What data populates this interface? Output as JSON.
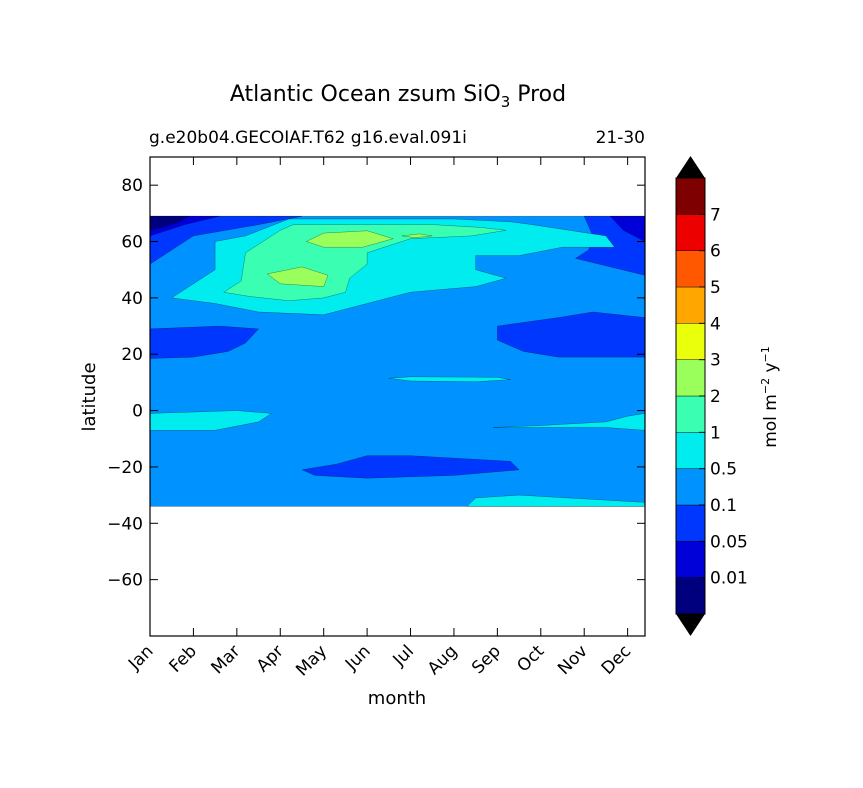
{
  "chart_data": {
    "type": "heatmap",
    "title_main": "Atlantic Ocean zsum SiO",
    "title_sub": "3",
    "title_tail": " Prod",
    "subtitle_left": "g.e20b04.GECOIAF.T62 g16.eval.091i",
    "subtitle_right": "21-30",
    "xlabel": "month",
    "ylabel": "latitude",
    "x_categories": [
      "Jan",
      "Feb",
      "Mar",
      "Apr",
      "May",
      "Jun",
      "Jul",
      "Aug",
      "Sep",
      "Oct",
      "Nov",
      "Dec"
    ],
    "xlim": [
      1,
      12.4
    ],
    "ylim": [
      -80,
      90
    ],
    "y_ticks": [
      80,
      60,
      40,
      20,
      0,
      -20,
      -40,
      -60
    ],
    "y_tick_labels": [
      "80",
      "60",
      "40",
      "20",
      "0",
      "−20",
      "−40",
      "−60"
    ],
    "data_lat_range": [
      -34,
      69
    ],
    "colorbar": {
      "label_main": "mol m",
      "label_exp1": "−2",
      "label_mid": " y",
      "label_exp2": "−1",
      "levels": [
        "0.01",
        "0.05",
        "0.1",
        "0.5",
        "1",
        "2",
        "3",
        "4",
        "5",
        "6",
        "7"
      ],
      "colors": [
        "#00007f",
        "#0000d8",
        "#0037ff",
        "#0093ff",
        "#00ecef",
        "#3affb3",
        "#9bff5b",
        "#eaff0c",
        "#ffa700",
        "#ff5800",
        "#ed0000",
        "#7f0000"
      ],
      "extend": "both",
      "under_color": "#000000",
      "over_color": "#000000"
    },
    "regions": [
      {
        "level_index": 3,
        "desc": "background 0.1-0.5",
        "lat": [
          [
            1,
            -34
          ],
          [
            12.4,
            -34
          ],
          [
            12.4,
            69
          ],
          [
            1,
            69
          ]
        ]
      },
      {
        "level_index": 2,
        "desc": "high lat north 0.05-0.1 west",
        "lat": [
          [
            1,
            69
          ],
          [
            4.5,
            69
          ],
          [
            3.5,
            66
          ],
          [
            2,
            62
          ],
          [
            1,
            52
          ]
        ]
      },
      {
        "level_index": 1,
        "desc": "0.01-0.05 north-west",
        "lat": [
          [
            1,
            69
          ],
          [
            2.6,
            69
          ],
          [
            1.8,
            66
          ],
          [
            1,
            62
          ]
        ]
      },
      {
        "level_index": 0,
        "desc": "<0.01 Jan north",
        "lat": [
          [
            1,
            69
          ],
          [
            1.9,
            69
          ],
          [
            1.6,
            66.5
          ],
          [
            1,
            64
          ]
        ]
      },
      {
        "level_index": 2,
        "desc": "high lat north east 0.05-0.1",
        "lat": [
          [
            12.4,
            69
          ],
          [
            11,
            69
          ],
          [
            11.2,
            62
          ],
          [
            11.1,
            57
          ],
          [
            10.8,
            54
          ],
          [
            12.4,
            48
          ]
        ]
      },
      {
        "level_index": 1,
        "desc": "0.01-0.05 north east",
        "lat": [
          [
            12.4,
            69
          ],
          [
            11.6,
            69
          ],
          [
            11.9,
            64
          ],
          [
            12.4,
            60
          ]
        ]
      },
      {
        "level_index": 4,
        "desc": "0.5-1 northern bloom",
        "lat": [
          [
            2.5,
            60
          ],
          [
            3.2,
            62
          ],
          [
            4.2,
            68
          ],
          [
            6,
            68
          ],
          [
            8,
            68
          ],
          [
            9.3,
            67
          ],
          [
            9.8,
            66
          ],
          [
            11.5,
            62
          ],
          [
            11.7,
            58
          ],
          [
            10.5,
            58
          ],
          [
            9.5,
            55
          ],
          [
            8.5,
            55
          ],
          [
            8.5,
            50
          ],
          [
            9.2,
            47
          ],
          [
            8.5,
            44
          ],
          [
            7,
            42
          ],
          [
            6,
            38
          ],
          [
            5,
            34
          ],
          [
            3.5,
            35
          ],
          [
            2.5,
            38
          ],
          [
            1.5,
            40
          ],
          [
            2.5,
            50
          ]
        ]
      },
      {
        "level_index": 5,
        "desc": "1-2 bloom",
        "lat": [
          [
            3.2,
            56
          ],
          [
            4,
            64
          ],
          [
            4.3,
            66
          ],
          [
            6.4,
            66
          ],
          [
            7.5,
            66
          ],
          [
            8.6,
            65
          ],
          [
            9.2,
            64
          ],
          [
            8.4,
            62
          ],
          [
            7,
            61
          ],
          [
            6.6,
            59
          ],
          [
            6,
            56
          ],
          [
            6,
            52
          ],
          [
            5.6,
            47
          ],
          [
            5.5,
            42
          ],
          [
            5,
            40
          ],
          [
            4.2,
            39
          ],
          [
            3.3,
            40.5
          ],
          [
            2.7,
            42
          ],
          [
            3.1,
            46
          ]
        ]
      },
      {
        "level_index": 6,
        "desc": "2-3 patch north",
        "lat": [
          [
            4.6,
            60
          ],
          [
            5,
            63
          ],
          [
            6,
            63.8
          ],
          [
            6.6,
            61
          ],
          [
            5.9,
            58
          ],
          [
            5,
            58
          ]
        ]
      },
      {
        "level_index": 6,
        "desc": "2-3 patch Apr",
        "lat": [
          [
            3.7,
            48.5
          ],
          [
            4.5,
            51
          ],
          [
            5.1,
            48
          ],
          [
            5,
            44
          ],
          [
            4,
            45
          ]
        ]
      },
      {
        "level_index": 6,
        "desc": "2-3 patch Jul",
        "lat": [
          [
            6.8,
            62
          ],
          [
            7.2,
            62.7
          ],
          [
            7.5,
            62
          ],
          [
            7.1,
            61.4
          ]
        ]
      },
      {
        "level_index": 2,
        "desc": "north subtropic band west",
        "lat": [
          [
            1,
            29
          ],
          [
            2.6,
            30
          ],
          [
            3.5,
            29
          ],
          [
            3.2,
            24
          ],
          [
            2.8,
            21
          ],
          [
            2,
            19
          ],
          [
            1,
            18.5
          ]
        ]
      },
      {
        "level_index": 2,
        "desc": "north subtropic band east",
        "lat": [
          [
            12.4,
            33
          ],
          [
            11.2,
            35
          ],
          [
            10.4,
            33
          ],
          [
            9,
            30
          ],
          [
            9,
            25
          ],
          [
            9.6,
            21
          ],
          [
            10.4,
            19
          ],
          [
            12.4,
            19
          ]
        ]
      },
      {
        "level_index": 4,
        "desc": "narrow Jul-Aug band",
        "lat": [
          [
            6.5,
            11.5
          ],
          [
            7,
            12
          ],
          [
            9,
            11.8
          ],
          [
            9.3,
            11
          ],
          [
            8.5,
            10.2
          ],
          [
            7,
            10.5
          ]
        ]
      },
      {
        "level_index": 4,
        "desc": "equatorial west",
        "lat": [
          [
            1,
            -7
          ],
          [
            1,
            -1
          ],
          [
            3,
            0
          ],
          [
            3.8,
            -1
          ],
          [
            3.5,
            -4
          ],
          [
            2.5,
            -7
          ]
        ]
      },
      {
        "level_index": 4,
        "desc": "equatorial east",
        "lat": [
          [
            12.4,
            -7
          ],
          [
            11.5,
            -6
          ],
          [
            10,
            -6
          ],
          [
            8.9,
            -6
          ],
          [
            10,
            -5.3
          ],
          [
            11.5,
            -4
          ],
          [
            12,
            -2
          ],
          [
            12.4,
            -1
          ]
        ]
      },
      {
        "level_index": 2,
        "desc": "southern patch",
        "lat": [
          [
            4.5,
            -21
          ],
          [
            5.3,
            -19
          ],
          [
            6,
            -16
          ],
          [
            7,
            -16
          ],
          [
            9.3,
            -18
          ],
          [
            9.5,
            -21
          ],
          [
            8,
            -23
          ],
          [
            6,
            -24
          ],
          [
            4.8,
            -23
          ]
        ]
      },
      {
        "level_index": 4,
        "desc": "south east 0.5-1",
        "lat": [
          [
            8.3,
            -34
          ],
          [
            8.5,
            -31
          ],
          [
            9.5,
            -30
          ],
          [
            12.4,
            -32.6
          ],
          [
            12.4,
            -34
          ]
        ]
      }
    ]
  }
}
